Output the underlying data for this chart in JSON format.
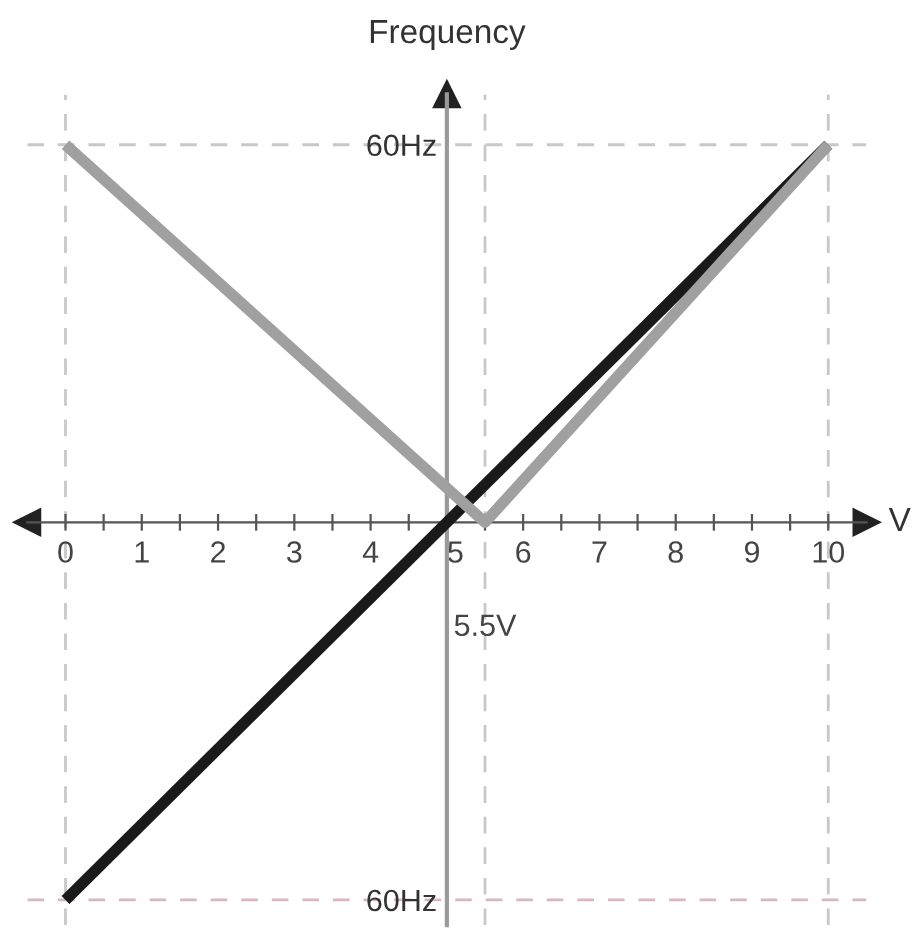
{
  "chart_data": {
    "type": "line",
    "xlabel": "V",
    "ylabel": "Frequency",
    "series": [
      {
        "x": [
          0,
          10
        ],
        "values": [
          -60,
          60
        ],
        "color": "#1a1a1a"
      },
      {
        "x": [
          0,
          5.5,
          10
        ],
        "values": [
          60,
          0,
          60
        ],
        "color": "#a0a0a0"
      }
    ],
    "xlim": [
      -0.5,
      10.5
    ],
    "ylim": [
      -64,
      68
    ],
    "xticks": [
      0,
      {
        "value": 0.5,
        "label": null
      },
      1,
      {
        "value": 1.5,
        "label": null
      },
      2,
      {
        "value": 2.5,
        "label": null
      },
      3,
      {
        "value": 3.5,
        "label": null
      },
      4,
      {
        "value": 4.5,
        "label": null
      },
      5,
      {
        "value": 5.5,
        "label": null
      },
      6,
      {
        "value": 6.5,
        "label": null
      },
      7,
      {
        "value": 7.5,
        "label": null
      },
      8,
      {
        "value": 8.5,
        "label": null
      },
      9,
      {
        "value": 9.5,
        "label": null
      },
      10
    ],
    "yticks": [
      {
        "value": 60,
        "label": "60Hz"
      },
      {
        "value": -60,
        "label": "60Hz"
      }
    ],
    "ref_lines": [
      {
        "axis": "x",
        "value": 0,
        "color": "#c8c8c8",
        "line_style": "dashed"
      },
      {
        "axis": "x",
        "value": 5.5,
        "label": "5.5V",
        "color": "#c8c8c8",
        "line_style": "dashed"
      },
      {
        "axis": "x",
        "value": 10,
        "color": "#c8c8c8",
        "line_style": "dashed"
      },
      {
        "axis": "y",
        "value": 60,
        "color": "#c8c8c8",
        "line_style": "dashed"
      },
      {
        "axis": "y",
        "value": -60,
        "color": "#d8b8c0",
        "line_style": "dashed"
      }
    ],
    "grid": false,
    "legend": false,
    "marker": "none",
    "line_style": "solid"
  }
}
